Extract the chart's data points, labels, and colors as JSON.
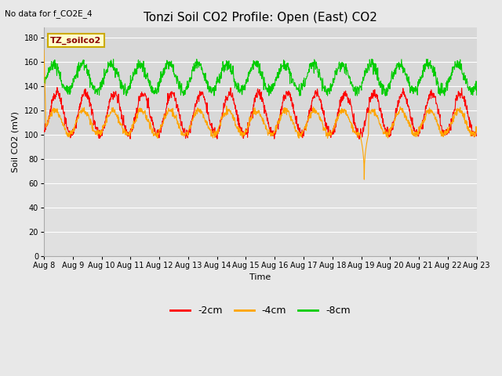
{
  "title": "Tonzi Soil CO2 Profile: Open (East) CO2",
  "subtitle": "No data for f_CO2E_4",
  "xlabel": "Time",
  "ylabel": "Soil CO2 (mV)",
  "ylim": [
    0,
    188
  ],
  "yticks": [
    0,
    20,
    40,
    60,
    80,
    100,
    120,
    140,
    160,
    180
  ],
  "date_start": 8,
  "n_days": 15,
  "colors": {
    "neg2cm": "#ff0000",
    "neg4cm": "#ffa500",
    "neg8cm": "#00cc00"
  },
  "legend_labels": [
    "-2cm",
    "-4cm",
    "-8cm"
  ],
  "inset_label": "TZ_soilco2",
  "fig_bg": "#e8e8e8",
  "plot_bg_upper": "#d8d8d8",
  "plot_bg_lower": "#e0e0e0",
  "grid_color": "#ffffff",
  "title_fontsize": 11,
  "label_fontsize": 8,
  "tick_fontsize": 7
}
